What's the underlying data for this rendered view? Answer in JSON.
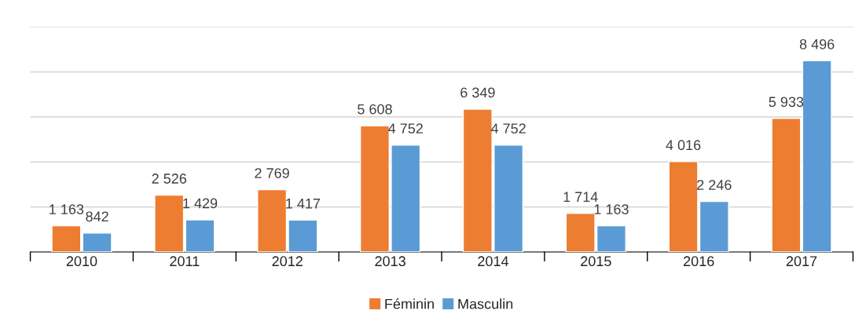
{
  "chart_data": {
    "type": "bar",
    "categories": [
      "2010",
      "2011",
      "2012",
      "2013",
      "2014",
      "2015",
      "2016",
      "2017"
    ],
    "series": [
      {
        "name": "Féminin",
        "color": "#ed7d31",
        "values": [
          1163,
          2526,
          2769,
          5608,
          6349,
          1714,
          4016,
          5933
        ],
        "value_labels": [
          "1 163",
          "2 526",
          "2 769",
          "5 608",
          "6 349",
          "1 714",
          "4 016",
          "5 933"
        ]
      },
      {
        "name": "Masculin",
        "color": "#5b9bd5",
        "values": [
          842,
          1429,
          1417,
          4752,
          4752,
          1163,
          2246,
          8496
        ],
        "value_labels": [
          "842",
          "1 429",
          "1 417",
          "4 752",
          "4 752",
          "1 163",
          "2 246",
          "8 496"
        ]
      }
    ],
    "ylim": [
      0,
      10000
    ],
    "yticks": [
      {
        "value": 0,
        "label": null
      },
      {
        "value": 2000,
        "label": null
      },
      {
        "value": 4000,
        "label": null
      },
      {
        "value": 6000,
        "label": null
      },
      {
        "value": 8000,
        "label": null
      },
      {
        "value": 10000,
        "label": null
      }
    ],
    "grid": "y",
    "legend": "bottom",
    "tick_labels": "x"
  }
}
